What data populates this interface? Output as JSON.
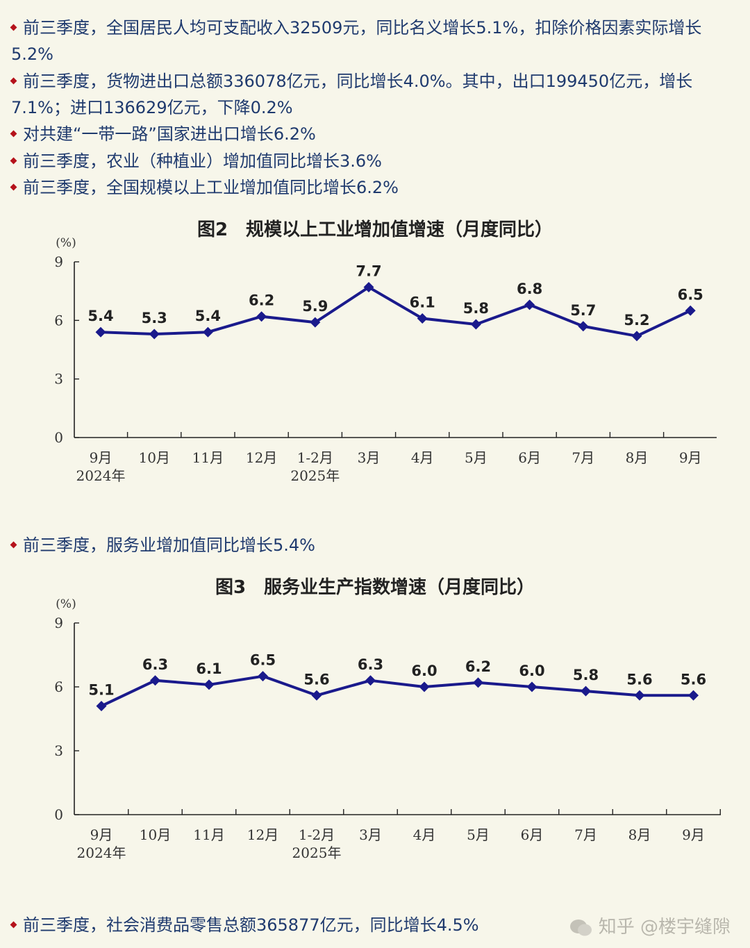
{
  "bullets_top": [
    "前三季度，全国居民人均可支配收入32509元，同比名义增长5.1%，扣除价格因素实际增长5.2%",
    "前三季度，货物进出口总额336078亿元，同比增长4.0%。其中，出口199450亿元，增长7.1%；进口136629亿元，下降0.2%",
    "对共建“一带一路”国家进出口增长6.2%",
    "前三季度，农业（种植业）增加值同比增长3.6%",
    "前三季度，全国规模以上工业增加值同比增长6.2%"
  ],
  "bullet_middle": "前三季度，服务业增加值同比增长5.4%",
  "bullet_bottom": "前三季度，社会消费品零售总额365877亿元，同比增长4.5%",
  "watermark": "知乎 @楼宇缝隙",
  "colors": {
    "line": "#1a1a8c",
    "bullet": "#b5121b",
    "text": "#1f3a6e",
    "background": "#f7f6ea"
  },
  "chart_data": [
    {
      "type": "line",
      "title": "图2　规模以上工业增加值增速（月度同比）",
      "ylabel": "(%)",
      "ylim": [
        0,
        9
      ],
      "yticks": [
        0,
        3,
        6,
        9
      ],
      "categories": [
        "9月",
        "10月",
        "11月",
        "12月",
        "1-2月",
        "3月",
        "4月",
        "5月",
        "6月",
        "7月",
        "8月",
        "9月"
      ],
      "year_labels": {
        "0": "2024年",
        "4": "2025年"
      },
      "values": [
        5.4,
        5.3,
        5.4,
        6.2,
        5.9,
        7.7,
        6.1,
        5.8,
        6.8,
        5.7,
        5.2,
        6.5
      ],
      "data_labels": [
        "5.4",
        "5.3",
        "5.4",
        "6.2",
        "5.9",
        "7.7",
        "6.1",
        "5.8",
        "6.8",
        "5.7",
        "5.2",
        "6.5"
      ],
      "grid": false,
      "marker": "diamond"
    },
    {
      "type": "line",
      "title": "图3　服务业生产指数增速（月度同比）",
      "ylabel": "(%)",
      "ylim": [
        0,
        9
      ],
      "yticks": [
        0,
        3,
        6,
        9
      ],
      "categories": [
        "9月",
        "10月",
        "11月",
        "12月",
        "1-2月",
        "3月",
        "4月",
        "5月",
        "6月",
        "7月",
        "8月",
        "9月"
      ],
      "year_labels": {
        "0": "2024年",
        "4": "2025年"
      },
      "values": [
        5.1,
        6.3,
        6.1,
        6.5,
        5.6,
        6.3,
        6.0,
        6.2,
        6.0,
        5.8,
        5.6,
        5.6
      ],
      "data_labels": [
        "5.1",
        "6.3",
        "6.1",
        "6.5",
        "5.6",
        "6.3",
        "6.0",
        "6.2",
        "6.0",
        "5.8",
        "5.6",
        "5.6"
      ],
      "grid": false,
      "marker": "diamond"
    }
  ]
}
